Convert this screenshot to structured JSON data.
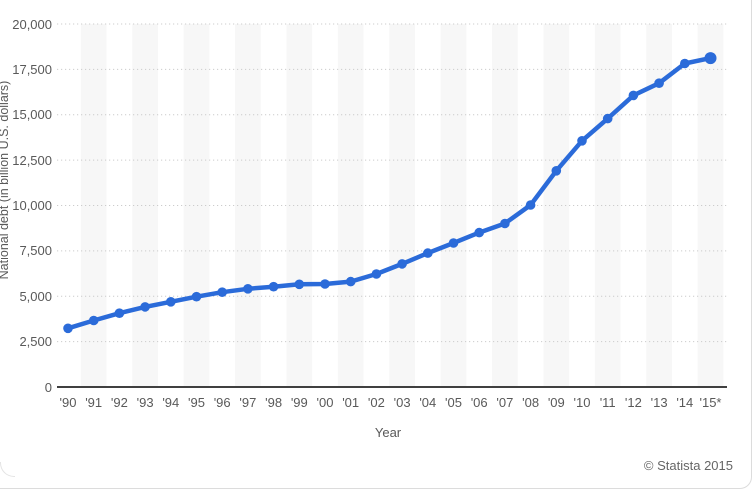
{
  "chart_data": {
    "type": "line",
    "title": "",
    "ylabel": "National debt (in billion U.S. dollars)",
    "xlabel": "Year",
    "x_labels": [
      "'90",
      "'91",
      "'92",
      "'93",
      "'94",
      "'95",
      "'96",
      "'97",
      "'98",
      "'99",
      "'00",
      "'01",
      "'02",
      "'03",
      "'04",
      "'05",
      "'06",
      "'07",
      "'08",
      "'09",
      "'10",
      "'11",
      "'12",
      "'13",
      "'14",
      "'15*"
    ],
    "series": [
      {
        "name": "National debt",
        "values": [
          3233,
          3665,
          4065,
          4411,
          4693,
          4974,
          5225,
          5413,
          5526,
          5656,
          5674,
          5807,
          6228,
          6783,
          7379,
          7933,
          8507,
          9008,
          10025,
          11910,
          13562,
          14790,
          16066,
          16738,
          17824,
          18120
        ]
      }
    ],
    "ylim": [
      0,
      20000
    ],
    "ytick_values": [
      0,
      2500,
      5000,
      7500,
      10000,
      12500,
      15000,
      17500,
      20000
    ],
    "ytick_labels": [
      "0",
      "2,500",
      "5,000",
      "7,500",
      "10,000",
      "12,500",
      "15,000",
      "17,500",
      "20,000"
    ],
    "grid": "horizontal-dotted",
    "legend_position": "none",
    "colors": {
      "line": "#2b6bd9",
      "marker": "#2b6bd9",
      "band": "#f7f7f7",
      "gridline": "#cccccc",
      "axis": "#404040",
      "tick_text": "#595959"
    }
  },
  "footer": {
    "copyright": "© Statista 2015"
  }
}
